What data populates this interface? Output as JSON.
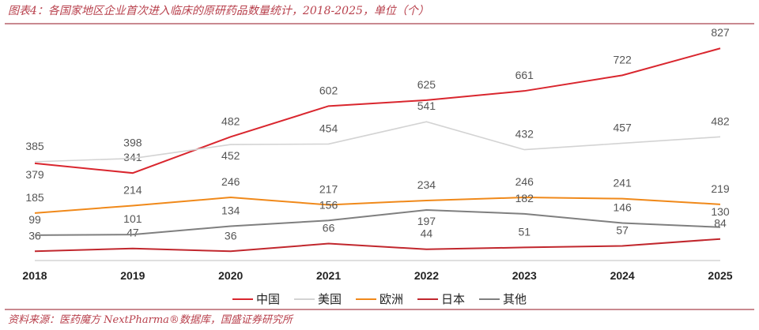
{
  "title": "图表4：各国家地区企业首次进入临床的原研药品数量统计，2018-2025，单位（个）",
  "source": "资料来源：医药魔方 NextPharma®数据库，国盛证券研究所",
  "chart_data": {
    "type": "line",
    "categories": [
      "2018",
      "2019",
      "2020",
      "2021",
      "2022",
      "2023",
      "2024",
      "2025"
    ],
    "ylim": [
      0,
      850
    ],
    "grid": false,
    "legend_position": "bottom",
    "series": [
      {
        "name": "中国",
        "color": "#d9262e",
        "values": [
          379,
          341,
          482,
          602,
          625,
          661,
          722,
          827
        ]
      },
      {
        "name": "美国",
        "color": "#d3d3d3",
        "values": [
          385,
          398,
          452,
          454,
          541,
          432,
          457,
          482
        ]
      },
      {
        "name": "欧洲",
        "color": "#f0891a",
        "values": [
          185,
          214,
          246,
          217,
          234,
          246,
          241,
          219
        ]
      },
      {
        "name": "日本",
        "color": "#c1272d",
        "values": [
          36,
          47,
          36,
          66,
          44,
          51,
          57,
          84
        ]
      },
      {
        "name": "其他",
        "color": "#7f7f7f",
        "values": [
          99,
          101,
          134,
          156,
          197,
          182,
          146,
          130
        ]
      }
    ]
  }
}
